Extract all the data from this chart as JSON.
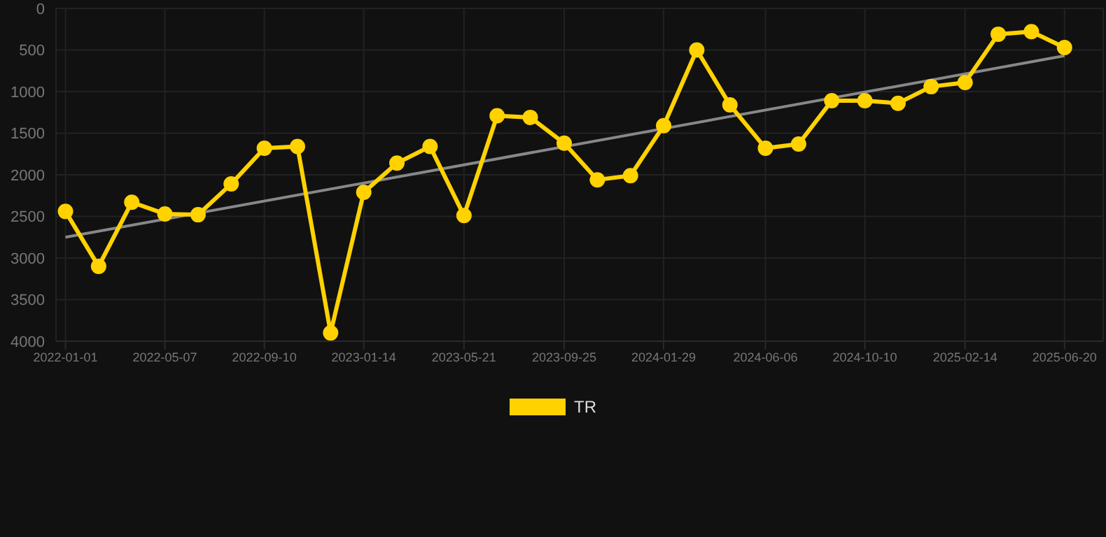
{
  "chart_data": {
    "type": "line",
    "x": [
      "2022-01-01",
      "2022-02-12",
      "2022-03-26",
      "2022-05-07",
      "2022-06-18",
      "2022-07-30",
      "2022-09-10",
      "2022-10-22",
      "2022-12-03",
      "2023-01-14",
      "2023-02-25",
      "2023-04-08",
      "2023-05-21",
      "2023-07-02",
      "2023-08-13",
      "2023-09-25",
      "2023-11-06",
      "2023-12-18",
      "2024-01-29",
      "2024-03-11",
      "2024-04-22",
      "2024-06-06",
      "2024-07-18",
      "2024-08-29",
      "2024-10-10",
      "2024-11-21",
      "2025-01-02",
      "2025-02-14",
      "2025-03-28",
      "2025-05-09",
      "2025-06-20"
    ],
    "series": [
      {
        "name": "TR",
        "color": "#ffd200",
        "marker": "circle",
        "values": [
          2440,
          3100,
          2330,
          2470,
          2480,
          2110,
          1680,
          1660,
          3900,
          2210,
          1860,
          1660,
          2490,
          1290,
          1310,
          1620,
          2060,
          2010,
          1410,
          500,
          1160,
          1680,
          1630,
          1110,
          1110,
          1140,
          940,
          890,
          310,
          280,
          470
        ]
      },
      {
        "type": "line",
        "color": "#888888",
        "marker": "none",
        "x": [
          "2022-01-01",
          "2025-06-20"
        ],
        "values": [
          2750,
          570
        ]
      }
    ],
    "xlim": [
      "2021-12-20",
      "2025-08-08"
    ],
    "xticks": [
      "2022-01-01",
      "2022-05-07",
      "2022-09-10",
      "2023-01-14",
      "2023-05-21",
      "2023-09-25",
      "2024-01-29",
      "2024-06-06",
      "2024-10-10",
      "2025-02-14",
      "2025-06-20"
    ],
    "ylim": [
      4000,
      0
    ],
    "yticks": [
      0,
      500,
      1000,
      1500,
      2000,
      2500,
      3000,
      3500,
      4000
    ],
    "grid": true,
    "legend": "bottom",
    "line_style": "solid"
  }
}
